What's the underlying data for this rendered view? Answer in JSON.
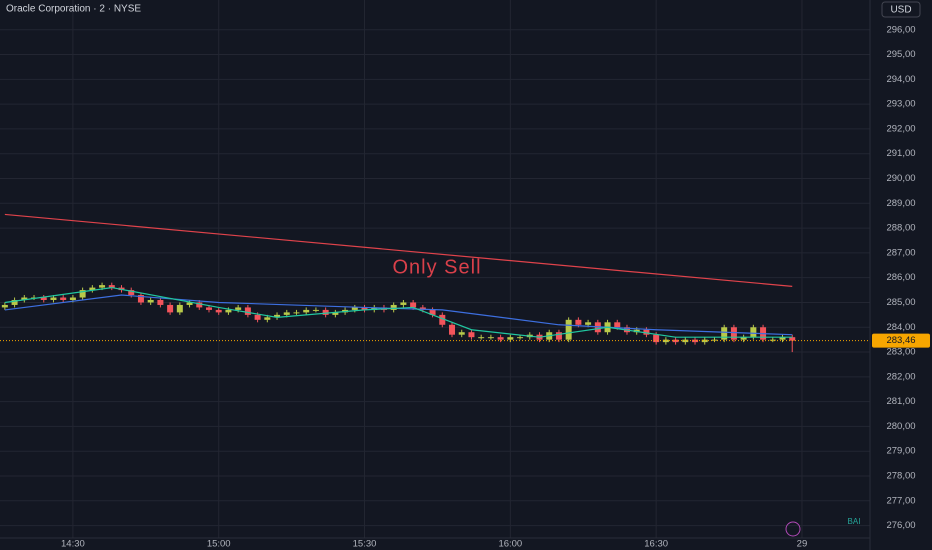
{
  "chart_data": {
    "type": "candlestick",
    "title": "Oracle Corporation · 2 · NYSE",
    "currency": "USD",
    "annotation": "Only Sell",
    "footer_badge": "BAI",
    "up_color": "#b8c94a",
    "down_color": "#f2545b",
    "grid": true,
    "x": [
      "14:16",
      "14:18",
      "14:20",
      "14:22",
      "14:24",
      "14:26",
      "14:28",
      "14:30",
      "14:32",
      "14:34",
      "14:36",
      "14:38",
      "14:40",
      "14:42",
      "14:44",
      "14:46",
      "14:48",
      "14:50",
      "14:52",
      "14:54",
      "14:56",
      "14:58",
      "15:00",
      "15:02",
      "15:04",
      "15:06",
      "15:08",
      "15:10",
      "15:12",
      "15:14",
      "15:16",
      "15:18",
      "15:20",
      "15:22",
      "15:24",
      "15:26",
      "15:28",
      "15:30",
      "15:32",
      "15:34",
      "15:36",
      "15:38",
      "15:40",
      "15:42",
      "15:44",
      "15:46",
      "15:48",
      "15:50",
      "15:52",
      "15:54",
      "15:56",
      "15:58",
      "16:00",
      "16:02",
      "16:04",
      "16:06",
      "16:08",
      "16:10",
      "16:12",
      "16:14",
      "16:16",
      "16:18",
      "16:20",
      "16:22",
      "16:24",
      "16:26",
      "16:28",
      "16:30",
      "16:32",
      "16:34",
      "16:36",
      "16:38",
      "16:40",
      "16:42",
      "16:44",
      "16:46",
      "16:48",
      "16:50",
      "16:52",
      "16:54",
      "16:56",
      "16:58"
    ],
    "ohlc": [
      [
        284.8,
        285.0,
        284.7,
        284.9
      ],
      [
        284.9,
        285.2,
        284.8,
        285.1
      ],
      [
        285.1,
        285.3,
        285.0,
        285.2
      ],
      [
        285.2,
        285.3,
        285.1,
        285.2
      ],
      [
        285.2,
        285.3,
        285.0,
        285.1
      ],
      [
        285.1,
        285.3,
        285.0,
        285.2
      ],
      [
        285.2,
        285.3,
        285.0,
        285.1
      ],
      [
        285.1,
        285.3,
        285.0,
        285.2
      ],
      [
        285.2,
        285.6,
        285.1,
        285.5
      ],
      [
        285.5,
        285.7,
        285.4,
        285.6
      ],
      [
        285.6,
        285.8,
        285.5,
        285.7
      ],
      [
        285.7,
        285.8,
        285.5,
        285.6
      ],
      [
        285.6,
        285.7,
        285.4,
        285.5
      ],
      [
        285.5,
        285.6,
        285.2,
        285.3
      ],
      [
        285.3,
        285.4,
        284.9,
        285.0
      ],
      [
        285.0,
        285.2,
        284.9,
        285.1
      ],
      [
        285.1,
        285.2,
        284.8,
        284.9
      ],
      [
        284.9,
        285.0,
        284.5,
        284.6
      ],
      [
        284.6,
        285.0,
        284.5,
        284.9
      ],
      [
        284.9,
        285.1,
        284.8,
        285.0
      ],
      [
        285.0,
        285.1,
        284.7,
        284.8
      ],
      [
        284.8,
        284.9,
        284.6,
        284.7
      ],
      [
        284.7,
        284.8,
        284.5,
        284.6
      ],
      [
        284.6,
        284.8,
        284.5,
        284.7
      ],
      [
        284.7,
        284.9,
        284.6,
        284.8
      ],
      [
        284.8,
        284.9,
        284.4,
        284.5
      ],
      [
        284.5,
        284.6,
        284.2,
        284.3
      ],
      [
        284.3,
        284.5,
        284.2,
        284.4
      ],
      [
        284.4,
        284.6,
        284.3,
        284.5
      ],
      [
        284.5,
        284.7,
        284.4,
        284.6
      ],
      [
        284.6,
        284.7,
        284.5,
        284.6
      ],
      [
        284.6,
        284.8,
        284.5,
        284.7
      ],
      [
        284.7,
        284.8,
        284.6,
        284.7
      ],
      [
        284.7,
        284.8,
        284.4,
        284.5
      ],
      [
        284.5,
        284.7,
        284.4,
        284.6
      ],
      [
        284.6,
        284.8,
        284.5,
        284.7
      ],
      [
        284.7,
        284.9,
        284.6,
        284.8
      ],
      [
        284.8,
        284.9,
        284.6,
        284.7
      ],
      [
        284.7,
        284.9,
        284.6,
        284.8
      ],
      [
        284.8,
        284.9,
        284.6,
        284.7
      ],
      [
        284.7,
        285.0,
        284.6,
        284.9
      ],
      [
        284.9,
        285.1,
        284.8,
        285.0
      ],
      [
        285.0,
        285.1,
        284.7,
        284.8
      ],
      [
        284.8,
        284.9,
        284.6,
        284.7
      ],
      [
        284.7,
        284.8,
        284.4,
        284.5
      ],
      [
        284.5,
        284.6,
        284.0,
        284.1
      ],
      [
        284.1,
        284.2,
        283.6,
        283.7
      ],
      [
        283.7,
        283.9,
        283.6,
        283.8
      ],
      [
        283.8,
        283.9,
        283.5,
        283.6
      ],
      [
        283.6,
        283.7,
        283.5,
        283.6
      ],
      [
        283.6,
        283.7,
        283.5,
        283.6
      ],
      [
        283.6,
        283.7,
        283.4,
        283.5
      ],
      [
        283.5,
        283.7,
        283.4,
        283.6
      ],
      [
        283.6,
        283.7,
        283.5,
        283.6
      ],
      [
        283.6,
        283.8,
        283.5,
        283.7
      ],
      [
        283.7,
        283.8,
        283.4,
        283.5
      ],
      [
        283.5,
        283.9,
        283.4,
        283.8
      ],
      [
        283.8,
        283.9,
        283.4,
        283.5
      ],
      [
        283.5,
        284.4,
        283.4,
        284.3
      ],
      [
        284.3,
        284.4,
        284.0,
        284.1
      ],
      [
        284.1,
        284.3,
        284.0,
        284.2
      ],
      [
        284.2,
        284.3,
        283.7,
        283.8
      ],
      [
        283.8,
        284.3,
        283.7,
        284.2
      ],
      [
        284.2,
        284.3,
        283.9,
        284.0
      ],
      [
        284.0,
        284.1,
        283.7,
        283.8
      ],
      [
        283.8,
        284.0,
        283.7,
        283.9
      ],
      [
        283.9,
        284.0,
        283.6,
        283.7
      ],
      [
        283.7,
        283.8,
        283.3,
        283.4
      ],
      [
        283.4,
        283.6,
        283.3,
        283.5
      ],
      [
        283.5,
        283.6,
        283.3,
        283.4
      ],
      [
        283.4,
        283.6,
        283.3,
        283.5
      ],
      [
        283.5,
        283.6,
        283.3,
        283.4
      ],
      [
        283.4,
        283.6,
        283.3,
        283.5
      ],
      [
        283.5,
        283.6,
        283.4,
        283.5
      ],
      [
        283.5,
        284.1,
        283.4,
        284.0
      ],
      [
        284.0,
        284.1,
        283.4,
        283.5
      ],
      [
        283.5,
        283.7,
        283.4,
        283.6
      ],
      [
        283.6,
        284.1,
        283.5,
        284.0
      ],
      [
        284.0,
        284.1,
        283.4,
        283.5
      ],
      [
        283.5,
        283.6,
        283.4,
        283.5
      ],
      [
        283.5,
        283.7,
        283.4,
        283.6
      ],
      [
        283.6,
        283.7,
        283.0,
        283.46
      ]
    ],
    "lines": [
      {
        "color": "#e0434b",
        "x": [
          "14:16",
          "16:58"
        ],
        "values": [
          288.55,
          285.65
        ]
      },
      {
        "color": "#3d6fe0",
        "x": [
          "14:16",
          "14:40",
          "15:00",
          "15:30",
          "15:46",
          "16:10",
          "16:30",
          "16:58"
        ],
        "values": [
          284.7,
          285.3,
          285.0,
          284.8,
          284.7,
          284.1,
          283.9,
          283.7
        ]
      },
      {
        "color": "#21c7a0",
        "x": [
          "14:16",
          "14:38",
          "15:00",
          "15:12",
          "15:30",
          "15:40",
          "15:52",
          "16:06",
          "16:20",
          "16:34",
          "16:58"
        ],
        "values": [
          285.0,
          285.6,
          284.8,
          284.4,
          284.7,
          284.8,
          283.9,
          283.6,
          284.0,
          283.6,
          283.6
        ]
      }
    ],
    "last_price": {
      "value": 283.46,
      "label": "283,46"
    },
    "xlim": [
      "14:15",
      "17:14"
    ],
    "xticks": [
      "14:30",
      "15:00",
      "15:30",
      "16:00",
      "16:30",
      {
        "value": "17:00",
        "label": "29"
      }
    ],
    "ylim": [
      275.5,
      297.2
    ],
    "yticks": [
      {
        "value": 276,
        "label": "276,00"
      },
      {
        "value": 277,
        "label": "277,00"
      },
      {
        "value": 278,
        "label": "278,00"
      },
      {
        "value": 279,
        "label": "279,00"
      },
      {
        "value": 280,
        "label": "280,00"
      },
      {
        "value": 281,
        "label": "281,00"
      },
      {
        "value": 282,
        "label": "282,00"
      },
      {
        "value": 283,
        "label": "283,00"
      },
      {
        "value": 284,
        "label": "284,00"
      },
      {
        "value": 285,
        "label": "285,00"
      },
      {
        "value": 286,
        "label": "286,00"
      },
      {
        "value": 287,
        "label": "287,00"
      },
      {
        "value": 288,
        "label": "288,00"
      },
      {
        "value": 289,
        "label": "289,00"
      },
      {
        "value": 290,
        "label": "290,00"
      },
      {
        "value": 291,
        "label": "291,00"
      },
      {
        "value": 292,
        "label": "292,00"
      },
      {
        "value": 293,
        "label": "293,00"
      },
      {
        "value": 294,
        "label": "294,00"
      },
      {
        "value": 295,
        "label": "295,00"
      },
      {
        "value": 296,
        "label": "296,00"
      }
    ]
  }
}
